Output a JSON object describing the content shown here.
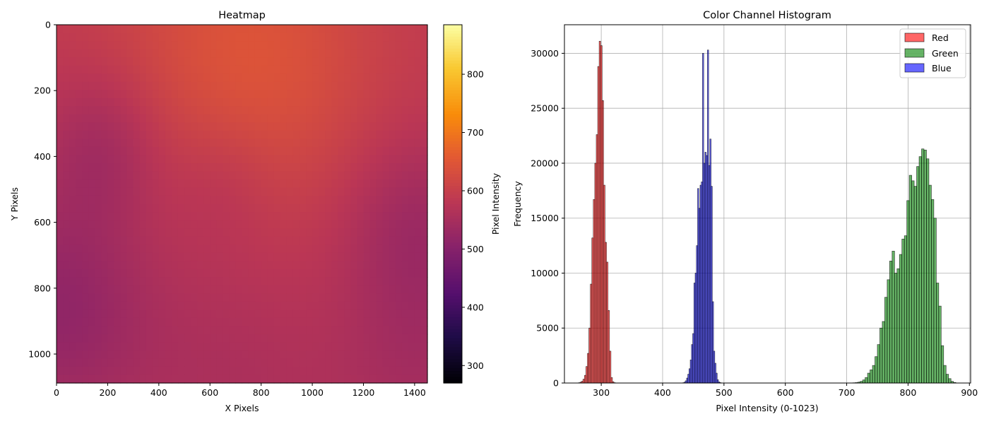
{
  "chart_data": [
    {
      "type": "heatmap",
      "title": "Heatmap",
      "xlabel": "X Pixels",
      "ylabel": "Y Pixels",
      "xlim": [
        0,
        1450
      ],
      "ylim": [
        1088,
        0
      ],
      "xticks": [
        0,
        200,
        400,
        600,
        800,
        1000,
        1200,
        1400
      ],
      "yticks": [
        0,
        200,
        400,
        600,
        800,
        1000
      ],
      "colormap": "inferno",
      "colorbar": {
        "label": "Pixel Intensity",
        "range": [
          270,
          885
        ],
        "ticks": [
          300,
          400,
          500,
          600,
          700,
          800
        ]
      },
      "field": {
        "base": 585,
        "features": [
          {
            "x": 650,
            "y": 50,
            "r": 350,
            "dv": 40
          },
          {
            "x": 900,
            "y": 150,
            "r": 300,
            "dv": 25
          },
          {
            "x": 180,
            "y": 370,
            "r": 170,
            "dv": -45
          },
          {
            "x": 650,
            "y": 470,
            "r": 140,
            "dv": -20
          },
          {
            "x": 1400,
            "y": 600,
            "r": 200,
            "dv": -45
          },
          {
            "x": 0,
            "y": 860,
            "r": 250,
            "dv": -65
          },
          {
            "x": 1400,
            "y": 1000,
            "r": 250,
            "dv": -40
          },
          {
            "x": 700,
            "y": 1080,
            "r": 350,
            "dv": -30
          },
          {
            "x": 1150,
            "y": 900,
            "r": 250,
            "dv": 10
          }
        ]
      }
    },
    {
      "type": "bar",
      "title": "Color Channel Histogram",
      "xlabel": "Pixel Intensity (0-1023)",
      "ylabel": "Frequency",
      "xlim": [
        240,
        902
      ],
      "ylim": [
        0,
        32600
      ],
      "xticks": [
        300,
        400,
        500,
        600,
        700,
        800,
        900
      ],
      "yticks": [
        0,
        5000,
        10000,
        15000,
        20000,
        25000,
        30000
      ],
      "grid": true,
      "legend": "upper-right",
      "series": [
        {
          "name": "Red",
          "color": "#ff0000",
          "bin_start": 263,
          "bin_width": 2.4,
          "values": [
            30,
            80,
            160,
            350,
            700,
            1500,
            2700,
            5000,
            9000,
            13200,
            16700,
            20000,
            22600,
            28800,
            31100,
            30700,
            25700,
            18000,
            12800,
            11000,
            6600,
            2900,
            500,
            120,
            30
          ]
        },
        {
          "name": "Green",
          "color": "#008000",
          "bin_start": 706,
          "bin_width": 4.0,
          "values": [
            10,
            20,
            40,
            80,
            150,
            280,
            500,
            900,
            1200,
            1600,
            2400,
            3500,
            5000,
            5600,
            7800,
            9400,
            11100,
            12000,
            10000,
            10400,
            11700,
            13100,
            13400,
            16600,
            18900,
            18400,
            17900,
            19700,
            20600,
            21300,
            21200,
            20400,
            18000,
            16700,
            15000,
            9100,
            7000,
            3400,
            1600,
            800,
            400,
            150,
            50
          ]
        },
        {
          "name": "Blue",
          "color": "#0000ff",
          "bin_start": 433,
          "bin_width": 2.0,
          "values": [
            30,
            80,
            200,
            450,
            800,
            1300,
            2100,
            3500,
            4500,
            9100,
            10000,
            12500,
            17700,
            15900,
            18000,
            18300,
            30000,
            20000,
            21000,
            20700,
            30300,
            19800,
            22200,
            17900,
            7400,
            2900,
            1800,
            900,
            300,
            100,
            40,
            10
          ]
        }
      ]
    }
  ]
}
